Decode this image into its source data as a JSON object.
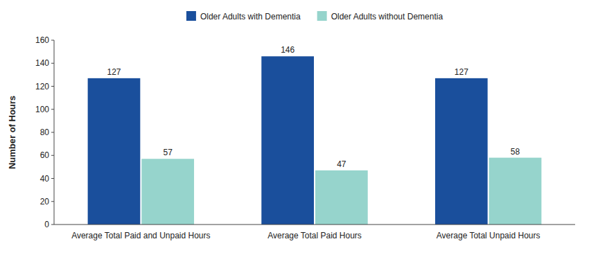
{
  "chart_data": {
    "type": "bar",
    "categories": [
      "Average Total Paid and Unpaid Hours",
      "Average Total Paid Hours",
      "Average Total Unpaid Hours"
    ],
    "series": [
      {
        "name": "Older Adults with Dementia",
        "color": "#1a4f9c",
        "values": [
          127,
          146,
          127
        ]
      },
      {
        "name": "Older Adults without Dementia",
        "color": "#96d4cc",
        "values": [
          57,
          47,
          58
        ]
      }
    ],
    "ylabel": "Number of Hours",
    "ylim": [
      0,
      160
    ],
    "yticks": [
      0,
      20,
      40,
      60,
      80,
      100,
      120,
      140,
      160
    ],
    "data_labels": true,
    "grid": false,
    "legend": "top"
  }
}
